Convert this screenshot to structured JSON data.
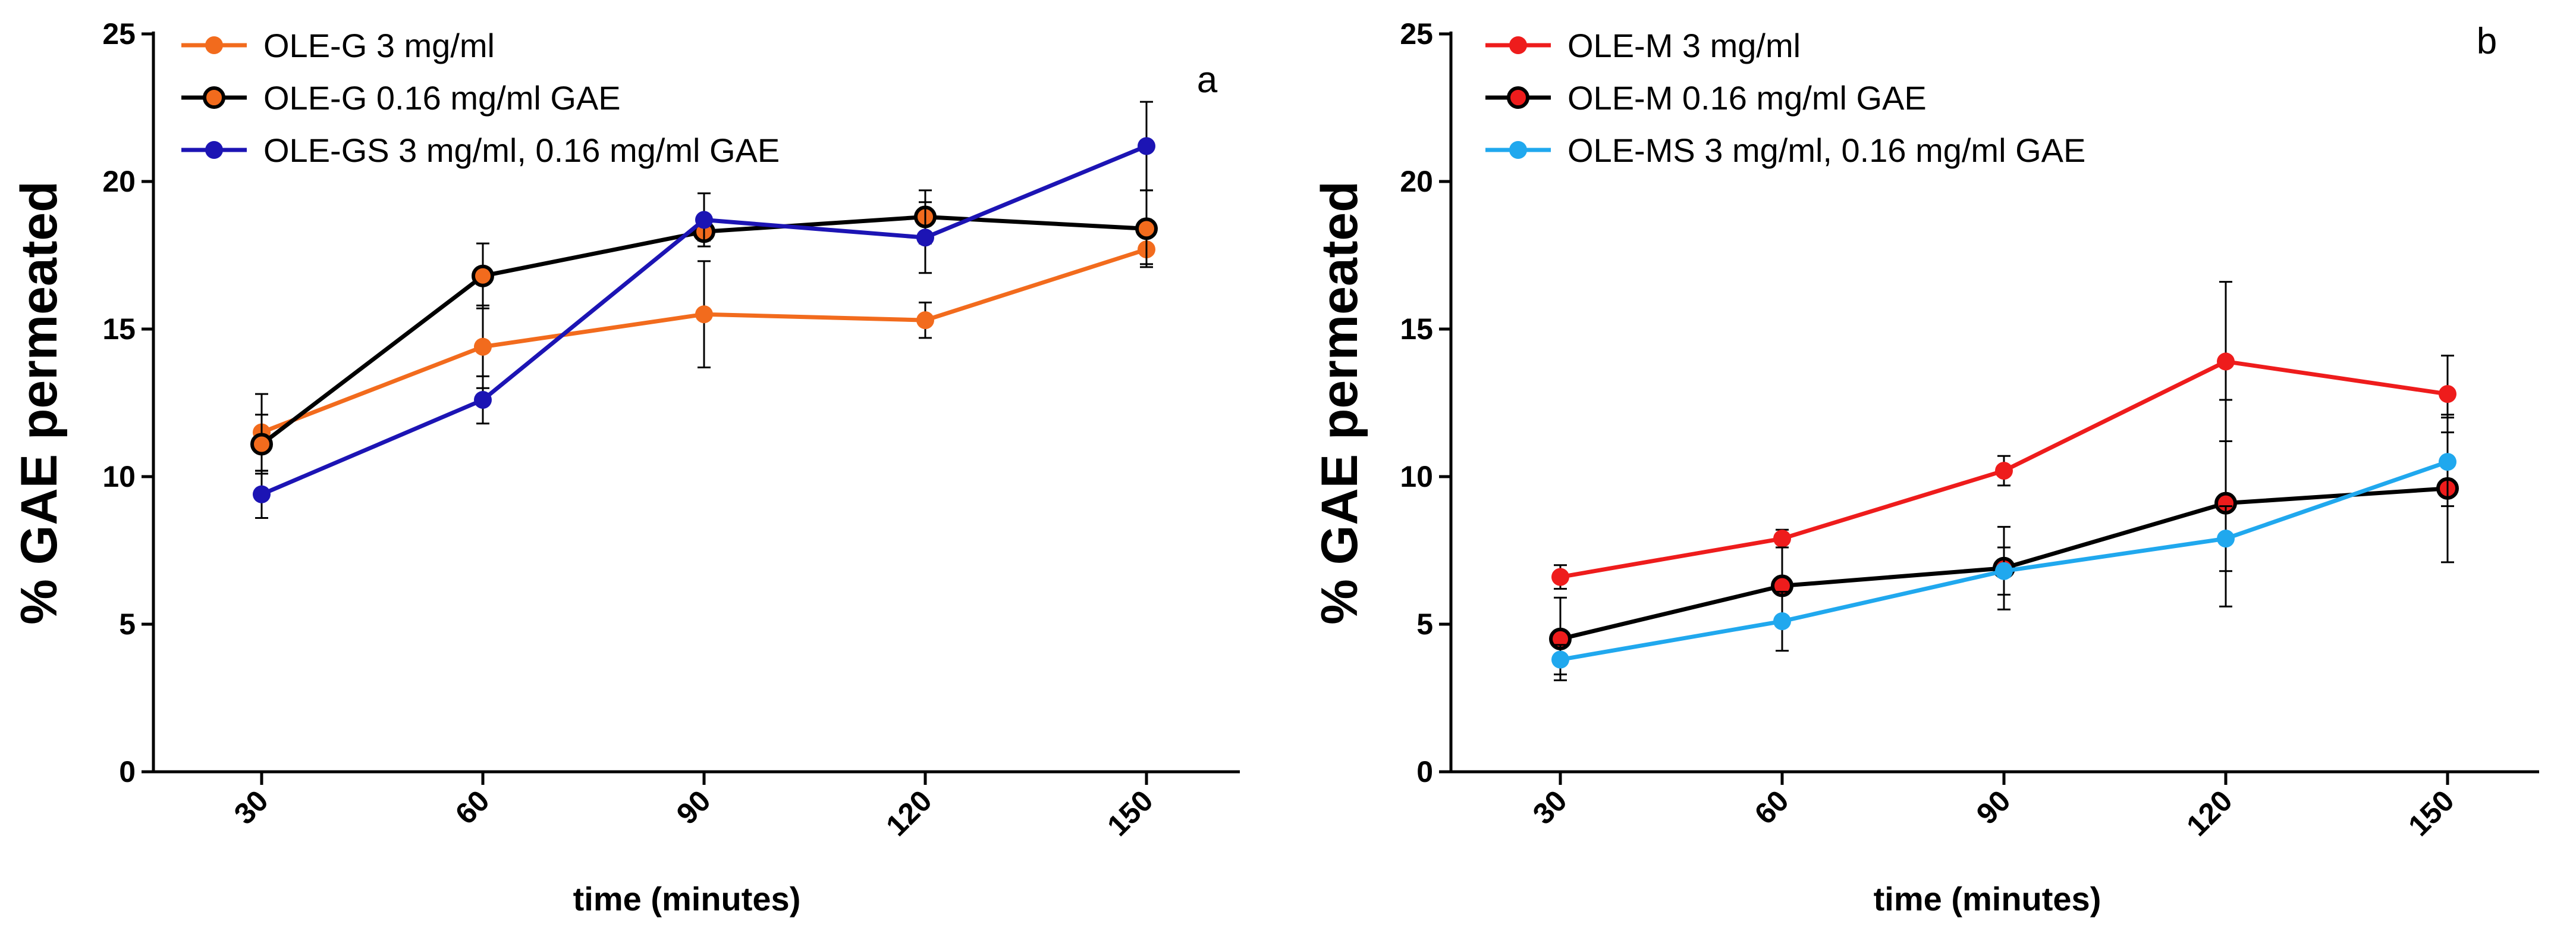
{
  "chart_data": [
    {
      "type": "line",
      "panel_label": "a",
      "xlabel": "time (minutes)",
      "ylabel": "% GAE permeated",
      "categories": [
        "30",
        "60",
        "90",
        "120",
        "150"
      ],
      "ylim": [
        0,
        25
      ],
      "yticks": [
        "0",
        "5",
        "10",
        "15",
        "20",
        "25"
      ],
      "legend_position": "top-left",
      "series": [
        {
          "name": "OLE-G 3 mg/ml",
          "color": "#f26b1d",
          "marker_edge": "#f26b1d",
          "values": [
            11.5,
            14.4,
            15.5,
            15.3,
            17.7
          ],
          "errors": [
            1.3,
            1.4,
            1.8,
            0.6,
            0.5
          ]
        },
        {
          "name": "OLE-G 0.16 mg/ml GAE",
          "color": "#000000",
          "marker_fill": "#f26b1d",
          "marker_edge": "#000000",
          "values": [
            11.1,
            16.8,
            18.3,
            18.8,
            18.4
          ],
          "errors": [
            1.0,
            1.1,
            0.3,
            0.9,
            1.3
          ]
        },
        {
          "name": "OLE-GS 3 mg/ml, 0.16 mg/ml GAE",
          "color": "#1c14b4",
          "marker_edge": "#1c14b4",
          "values": [
            9.4,
            12.6,
            18.7,
            18.1,
            21.2
          ],
          "errors": [
            0.8,
            0.8,
            0.9,
            1.2,
            1.5
          ]
        }
      ]
    },
    {
      "type": "line",
      "panel_label": "b",
      "xlabel": "time (minutes)",
      "ylabel": "% GAE permeated",
      "categories": [
        "30",
        "60",
        "90",
        "120",
        "150"
      ],
      "ylim": [
        0,
        25
      ],
      "yticks": [
        "0",
        "5",
        "10",
        "15",
        "20",
        "25"
      ],
      "legend_position": "top-left",
      "series": [
        {
          "name": "OLE-M 3 mg/ml",
          "color": "#ee1c1c",
          "marker_edge": "#ee1c1c",
          "values": [
            6.6,
            7.9,
            10.2,
            13.9,
            12.8
          ],
          "errors": [
            0.4,
            0.3,
            0.5,
            2.7,
            1.3
          ]
        },
        {
          "name": "OLE-M 0.16 mg/ml GAE",
          "color": "#000000",
          "marker_fill": "#ee1c1c",
          "marker_edge": "#000000",
          "values": [
            4.5,
            6.3,
            6.9,
            9.1,
            9.6
          ],
          "errors": [
            1.4,
            1.3,
            1.4,
            3.5,
            2.5
          ]
        },
        {
          "name": "OLE-MS 3 mg/ml, 0.16 mg/ml GAE",
          "color": "#20a8ee",
          "marker_edge": "#20a8ee",
          "values": [
            3.8,
            5.1,
            6.8,
            7.9,
            10.5
          ],
          "errors": [
            0.5,
            1.0,
            0.8,
            1.1,
            1.5
          ]
        }
      ]
    }
  ]
}
